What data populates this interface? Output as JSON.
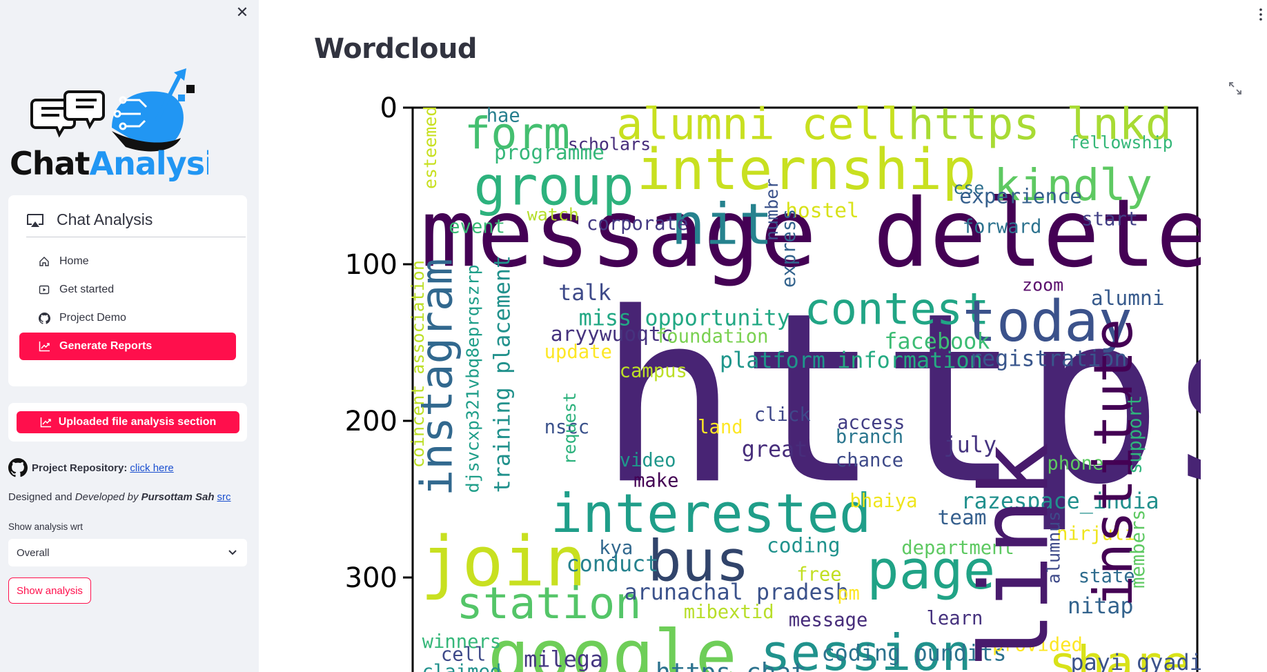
{
  "sidebar": {
    "logo": {
      "part1": "Chat",
      "part2": "Analysis"
    },
    "menu": {
      "title": "Chat Analysis",
      "items": [
        {
          "label": "Home",
          "icon": "house-icon"
        },
        {
          "label": "Get started",
          "icon": "play-icon"
        },
        {
          "label": "Project Demo",
          "icon": "github-icon"
        },
        {
          "label": "Generate Reports",
          "icon": "chart-line-icon",
          "active": true
        }
      ]
    },
    "upload_button": "Uploaded file analysis section",
    "repo": {
      "label": "Project Repository:",
      "link": "click here"
    },
    "credit": {
      "prefix": "Designed and ",
      "italic": "Developed by",
      "author": "Pursottam Sah",
      "link": "src"
    },
    "select": {
      "label": "Show analysis wrt",
      "value": "Overall"
    },
    "show_button": "Show analysis"
  },
  "main": {
    "title": "Wordcloud"
  },
  "colors": {
    "accent": "#ff0f4c",
    "sidebar_bg": "#f0f2f6"
  },
  "chart_data": {
    "type": "wordcloud",
    "yticks": [
      0,
      100,
      200,
      300
    ],
    "ylim": [
      0,
      360
    ],
    "words": [
      {
        "text": "https",
        "x": 118,
        "y": 238,
        "size": 150,
        "color": "#482474"
      },
      {
        "text": "message deleted",
        "x": 5,
        "y": 101,
        "size": 60,
        "color": "#440154"
      },
      {
        "text": "alumni cell",
        "x": 130,
        "y": 20,
        "size": 28,
        "color": "#c8e020"
      },
      {
        "text": "https lnkd",
        "x": 316,
        "y": 20,
        "size": 28,
        "color": "#a8db34"
      },
      {
        "text": "internship",
        "x": 143,
        "y": 52,
        "size": 36,
        "color": "#c8e020"
      },
      {
        "text": "form",
        "x": 33,
        "y": 26,
        "size": 28,
        "color": "#44bf70"
      },
      {
        "text": "group",
        "x": 39,
        "y": 62,
        "size": 34,
        "color": "#2db27d"
      },
      {
        "text": "kindly",
        "x": 371,
        "y": 59,
        "size": 28,
        "color": "#5ec962"
      },
      {
        "text": "nit",
        "x": 165,
        "y": 87,
        "size": 36,
        "color": "#26828e"
      },
      {
        "text": "contest",
        "x": 250,
        "y": 138,
        "size": 28,
        "color": "#21a585"
      },
      {
        "text": "today",
        "x": 351,
        "y": 149,
        "size": 36,
        "color": "#3b528b"
      },
      {
        "text": "interested",
        "x": 88,
        "y": 271,
        "size": 34,
        "color": "#1f9e89"
      },
      {
        "text": "join",
        "x": 5,
        "y": 305,
        "size": 44,
        "color": "#c8e020"
      },
      {
        "text": "bus",
        "x": 150,
        "y": 302,
        "size": 36,
        "color": "#31446b"
      },
      {
        "text": "page",
        "x": 290,
        "y": 307,
        "size": 34,
        "color": "#20a386"
      },
      {
        "text": "station",
        "x": 28,
        "y": 326,
        "size": 28,
        "color": "#54c568"
      },
      {
        "text": "google",
        "x": 48,
        "y": 365,
        "size": 44,
        "color": "#6ece58"
      },
      {
        "text": "session",
        "x": 222,
        "y": 359,
        "size": 32,
        "color": "#20928c"
      },
      {
        "text": "share",
        "x": 406,
        "y": 365,
        "size": 30,
        "color": "#d8e219"
      },
      {
        "text": "miss opportunity",
        "x": 106,
        "y": 139,
        "size": 14,
        "color": "#22a884"
      },
      {
        "text": "talk",
        "x": 93,
        "y": 123,
        "size": 14,
        "color": "#3e4a89"
      },
      {
        "text": "aryywuoqtc",
        "x": 88,
        "y": 149,
        "size": 13,
        "color": "#46337e"
      },
      {
        "text": "update",
        "x": 84,
        "y": 160,
        "size": 12,
        "color": "#fde725"
      },
      {
        "text": "foundation",
        "x": 155,
        "y": 150,
        "size": 12,
        "color": "#7ad151"
      },
      {
        "text": "campus",
        "x": 132,
        "y": 172,
        "size": 12,
        "color": "#bddf26"
      },
      {
        "text": "platform",
        "x": 196,
        "y": 166,
        "size": 14,
        "color": "#1f968b"
      },
      {
        "text": "information",
        "x": 271,
        "y": 166,
        "size": 14,
        "color": "#25ab82"
      },
      {
        "text": "facebook",
        "x": 301,
        "y": 154,
        "size": 14,
        "color": "#3dbc74"
      },
      {
        "text": "registration",
        "x": 355,
        "y": 165,
        "size": 14,
        "color": "#39568c"
      },
      {
        "text": "hae",
        "x": 47,
        "y": 9,
        "size": 12,
        "color": "#277f8e"
      },
      {
        "text": "scholars",
        "x": 99,
        "y": 27,
        "size": 11,
        "color": "#472d7b"
      },
      {
        "text": "programme",
        "x": 52,
        "y": 33,
        "size": 13,
        "color": "#35b779"
      },
      {
        "text": "fellowship",
        "x": 419,
        "y": 26,
        "size": 11,
        "color": "#35b779"
      },
      {
        "text": "cse",
        "x": 345,
        "y": 55,
        "size": 11,
        "color": "#2e6f8e"
      },
      {
        "text": "experience",
        "x": 349,
        "y": 61,
        "size": 13,
        "color": "#355f8d"
      },
      {
        "text": "watch",
        "x": 73,
        "y": 72,
        "size": 11,
        "color": "#b5de2b"
      },
      {
        "text": "hostel",
        "x": 238,
        "y": 70,
        "size": 13,
        "color": "#d8e219"
      },
      {
        "text": "event",
        "x": 23,
        "y": 80,
        "size": 12,
        "color": "#3aba76"
      },
      {
        "text": "corporate",
        "x": 111,
        "y": 78,
        "size": 12,
        "color": "#443983"
      },
      {
        "text": "forward",
        "x": 351,
        "y": 80,
        "size": 12,
        "color": "#2c728e"
      },
      {
        "text": "start",
        "x": 427,
        "y": 75,
        "size": 12,
        "color": "#424086"
      },
      {
        "text": "zoom",
        "x": 389,
        "y": 117,
        "size": 11,
        "color": "#5c126e"
      },
      {
        "text": "alumni",
        "x": 433,
        "y": 126,
        "size": 13,
        "color": "#375a8c"
      },
      {
        "text": "click",
        "x": 218,
        "y": 200,
        "size": 12,
        "color": "#3f4889"
      },
      {
        "text": "access",
        "x": 271,
        "y": 205,
        "size": 12,
        "color": "#433e85"
      },
      {
        "text": "branch",
        "x": 270,
        "y": 214,
        "size": 12,
        "color": "#2a768e"
      },
      {
        "text": "nscc",
        "x": 84,
        "y": 208,
        "size": 12,
        "color": "#3b528b"
      },
      {
        "text": "land",
        "x": 182,
        "y": 208,
        "size": 12,
        "color": "#fde725"
      },
      {
        "text": "great",
        "x": 210,
        "y": 223,
        "size": 14,
        "color": "#472d7b"
      },
      {
        "text": "july",
        "x": 339,
        "y": 220,
        "size": 14,
        "color": "#463480"
      },
      {
        "text": "video",
        "x": 132,
        "y": 229,
        "size": 12,
        "color": "#1f978b"
      },
      {
        "text": "chance",
        "x": 270,
        "y": 229,
        "size": 12,
        "color": "#3e4a89"
      },
      {
        "text": "phone",
        "x": 405,
        "y": 231,
        "size": 12,
        "color": "#5ec962"
      },
      {
        "text": "make",
        "x": 141,
        "y": 242,
        "size": 12,
        "color": "#440154"
      },
      {
        "text": "bhaiya",
        "x": 279,
        "y": 255,
        "size": 12,
        "color": "#efe51c"
      },
      {
        "text": "razespace_india",
        "x": 350,
        "y": 256,
        "size": 14,
        "color": "#21908d"
      },
      {
        "text": "team",
        "x": 335,
        "y": 266,
        "size": 13,
        "color": "#355f8d"
      },
      {
        "text": "nirjuli",
        "x": 411,
        "y": 276,
        "size": 12,
        "color": "#efe51c"
      },
      {
        "text": "kya",
        "x": 119,
        "y": 285,
        "size": 12,
        "color": "#31688e"
      },
      {
        "text": "coding",
        "x": 226,
        "y": 284,
        "size": 13,
        "color": "#20928c"
      },
      {
        "text": "department",
        "x": 312,
        "y": 285,
        "size": 12,
        "color": "#5ec962"
      },
      {
        "text": "conduct",
        "x": 98,
        "y": 296,
        "size": 14,
        "color": "#26828e"
      },
      {
        "text": "free",
        "x": 245,
        "y": 302,
        "size": 12,
        "color": "#c2df23"
      },
      {
        "text": "state",
        "x": 425,
        "y": 303,
        "size": 12,
        "color": "#2f6c8e"
      },
      {
        "text": "arunachal pradesh",
        "x": 135,
        "y": 314,
        "size": 14,
        "color": "#3b528b"
      },
      {
        "text": "pm",
        "x": 271,
        "y": 314,
        "size": 12,
        "color": "#fde725"
      },
      {
        "text": "nitap",
        "x": 418,
        "y": 323,
        "size": 14,
        "color": "#33638d"
      },
      {
        "text": "mibextid",
        "x": 173,
        "y": 326,
        "size": 12,
        "color": "#b8de29"
      },
      {
        "text": "message",
        "x": 240,
        "y": 331,
        "size": 12,
        "color": "#472d7b"
      },
      {
        "text": "learn",
        "x": 328,
        "y": 330,
        "size": 12,
        "color": "#46327e"
      },
      {
        "text": "winners",
        "x": 6,
        "y": 345,
        "size": 12,
        "color": "#35b779"
      },
      {
        "text": "cell",
        "x": 18,
        "y": 353,
        "size": 12,
        "color": "#3e4a89"
      },
      {
        "text": "milega",
        "x": 71,
        "y": 357,
        "size": 14,
        "color": "#453781"
      },
      {
        "text": "coding pundits",
        "x": 261,
        "y": 353,
        "size": 14,
        "color": "#2c728e"
      },
      {
        "text": "provided",
        "x": 370,
        "y": 347,
        "size": 12,
        "color": "#fde725"
      },
      {
        "text": "payi gyadi",
        "x": 420,
        "y": 359,
        "size": 14,
        "color": "#3b528b"
      },
      {
        "text": "https chat",
        "x": 155,
        "y": 366,
        "size": 16,
        "color": "#2c728e"
      },
      {
        "text": "claimed",
        "x": 6,
        "y": 364,
        "size": 12,
        "color": "#21918c"
      }
    ],
    "vertical_words": [
      {
        "text": "instagram",
        "x": 25,
        "y": 248,
        "size": 28,
        "color": "#31688e"
      },
      {
        "text": "djsvcxp321vbq8eprqszrp",
        "x": 42,
        "y": 246,
        "size": 11,
        "color": "#1f9e89"
      },
      {
        "text": "training placement",
        "x": 62,
        "y": 246,
        "size": 14,
        "color": "#21918c"
      },
      {
        "text": "coincent association",
        "x": 7,
        "y": 230,
        "size": 11,
        "color": "#bddf26"
      },
      {
        "text": "esteemed",
        "x": 15,
        "y": 52,
        "size": 11,
        "color": "#c8e020"
      },
      {
        "text": "request",
        "x": 104,
        "y": 228,
        "size": 11,
        "color": "#2db27d"
      },
      {
        "text": "number",
        "x": 233,
        "y": 85,
        "size": 11,
        "color": "#3b528b"
      },
      {
        "text": "express",
        "x": 244,
        "y": 115,
        "size": 12,
        "color": "#33638d"
      },
      {
        "text": "link",
        "x": 405,
        "y": 358,
        "size": 60,
        "color": "#481a6c"
      },
      {
        "text": "institute",
        "x": 459,
        "y": 319,
        "size": 34,
        "color": "#440154"
      },
      {
        "text": "alumnus",
        "x": 413,
        "y": 304,
        "size": 11,
        "color": "#3e4a89"
      },
      {
        "text": "members",
        "x": 467,
        "y": 307,
        "size": 12,
        "color": "#5ec962"
      },
      {
        "text": "support",
        "x": 465,
        "y": 234,
        "size": 12,
        "color": "#2fb47c"
      }
    ]
  }
}
